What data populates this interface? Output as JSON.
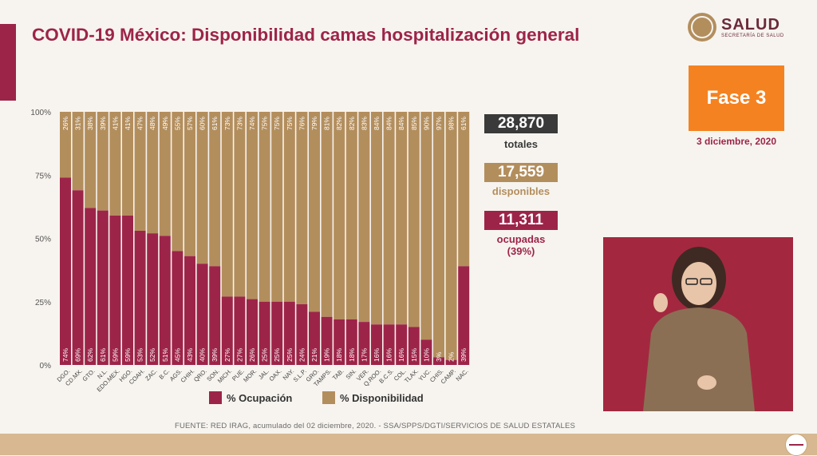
{
  "title": "COVID-19 México: Disponibilidad camas hospitalización general",
  "logo": {
    "title": "SALUD",
    "subtitle": "SECRETARÍA DE SALUD"
  },
  "phase": "Fase 3",
  "date": "3 diciembre, 2020",
  "totals": [
    {
      "value": "28,870",
      "label": "totales",
      "color": "#3a3a3a"
    },
    {
      "value": "17,559",
      "label": "disponibles",
      "color": "#b38e5d"
    },
    {
      "value": "11,311",
      "label": "ocupadas\n(39%)",
      "color": "#9d2449"
    }
  ],
  "footer": "FUENTE: RED IRAG, acumulado del 02 diciembre, 2020. -   SSA/SPPS/DGTI/SERVICIOS DE SALUD ESTATALES",
  "colors": {
    "ocupacion": "#9d2449",
    "disponibilidad": "#b38e5d"
  },
  "chart_data": {
    "type": "bar",
    "stacked": true,
    "categories": [
      "DGO.",
      "CD.MX.",
      "GTO.",
      "N.L.",
      "EDO.MEX.",
      "HGO.",
      "COAH.",
      "ZAC.",
      "B.C.",
      "AGS.",
      "CHIH.",
      "QRO.",
      "SON.",
      "MICH.",
      "PUE.",
      "MOR.",
      "JAL.",
      "OAX.",
      "NAY.",
      "S.L.P.",
      "GRO.",
      "TAMPS.",
      "TAB.",
      "SIN.",
      "VER.",
      "Q.ROO.",
      "B.C.S.",
      "COL.",
      "TLAX.",
      "YUC.",
      "CHIS.",
      "CAMP.",
      "NAC."
    ],
    "series": [
      {
        "name": "% Ocupación",
        "values": [
          74,
          69,
          62,
          61,
          59,
          59,
          53,
          52,
          51,
          45,
          43,
          40,
          39,
          27,
          27,
          26,
          25,
          25,
          25,
          24,
          21,
          19,
          18,
          18,
          17,
          16,
          16,
          16,
          15,
          10,
          3,
          2,
          39
        ]
      },
      {
        "name": "% Disponibilidad",
        "values": [
          26,
          31,
          38,
          39,
          41,
          41,
          47,
          48,
          49,
          55,
          57,
          60,
          61,
          73,
          73,
          74,
          75,
          75,
          75,
          76,
          79,
          81,
          82,
          82,
          83,
          84,
          84,
          84,
          85,
          90,
          97,
          98,
          61
        ]
      }
    ],
    "data_labels_bottom": [
      "74%",
      "69%",
      "62%",
      "61%",
      "59%",
      "59%",
      "53%",
      "52%",
      "51%",
      "45%",
      "43%",
      "40%",
      "39%",
      "27%",
      "27%",
      "26%",
      "25%",
      "25%",
      "25%",
      "24%",
      "21%",
      "19%",
      "18%",
      "18%",
      "17%",
      "16%",
      "16%",
      "16%",
      "15%",
      "10%",
      "3%",
      "2%",
      "39%"
    ],
    "data_labels_top": [
      "26%",
      "31%",
      "38%",
      "39%",
      "41%",
      "41%",
      "47%",
      "48%",
      "49%",
      "55%",
      "57%",
      "60%",
      "61%",
      "73%",
      "73%",
      "74%",
      "75%",
      "75%",
      "75%",
      "76%",
      "79%",
      "81%",
      "82%",
      "82%",
      "83%",
      "84%",
      "84%",
      "84%",
      "85%",
      "90%",
      "97%",
      "98%",
      "61%"
    ],
    "yticks": [
      "0%",
      "25%",
      "50%",
      "75%",
      "100%"
    ],
    "ylim": [
      0,
      100
    ],
    "legend": [
      "% Ocupación",
      "% Disponibilidad"
    ]
  }
}
